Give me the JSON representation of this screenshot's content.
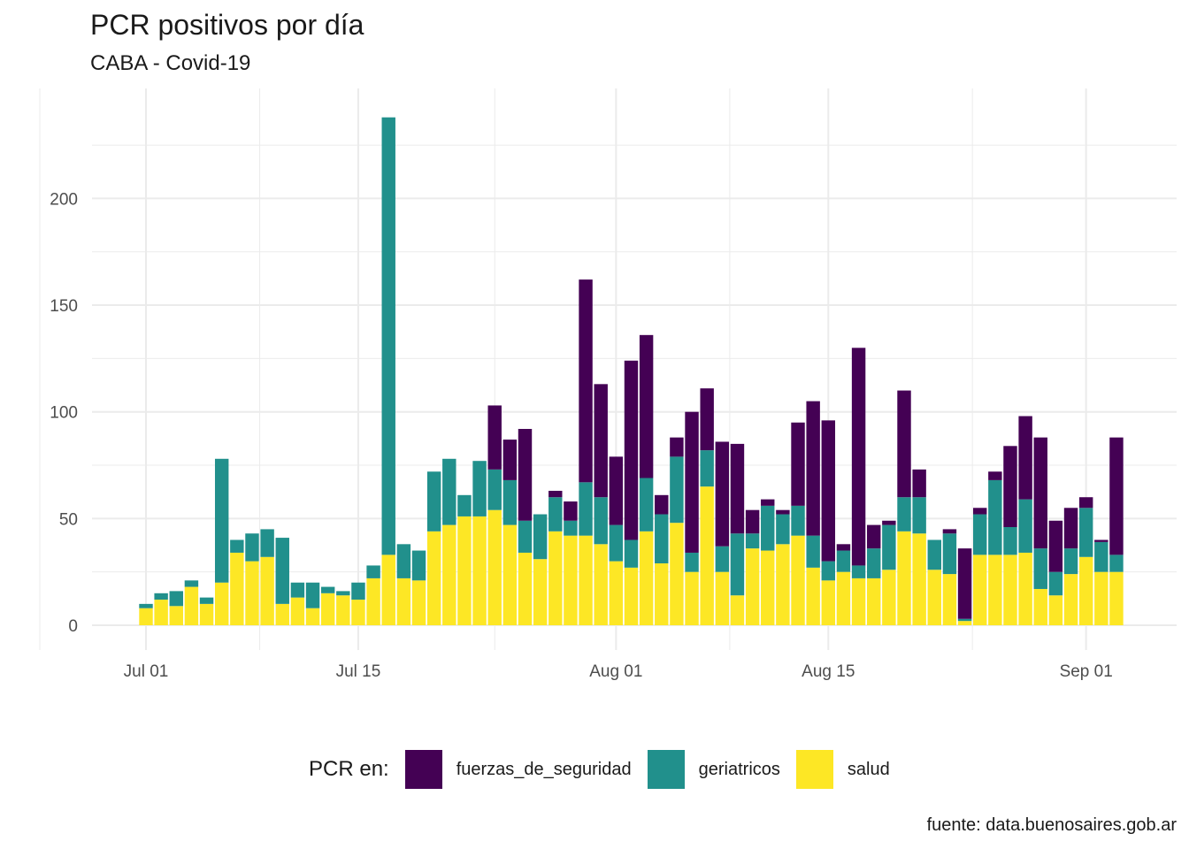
{
  "title": "PCR positivos por día",
  "subtitle": "CABA - Covid-19",
  "caption": "fuente: data.buenosaires.gob.ar",
  "legend": {
    "title": "PCR en:",
    "items": [
      {
        "label": "fuerzas_de_seguridad",
        "color": "#440154"
      },
      {
        "label": "geriatricos",
        "color": "#21908C"
      },
      {
        "label": "salud",
        "color": "#FDE725"
      }
    ]
  },
  "chart_data": {
    "type": "bar",
    "stacked": true,
    "x_type": "date",
    "categories": [
      "2020-07-01",
      "2020-07-02",
      "2020-07-03",
      "2020-07-04",
      "2020-07-05",
      "2020-07-06",
      "2020-07-07",
      "2020-07-08",
      "2020-07-09",
      "2020-07-10",
      "2020-07-11",
      "2020-07-12",
      "2020-07-13",
      "2020-07-14",
      "2020-07-15",
      "2020-07-16",
      "2020-07-17",
      "2020-07-18",
      "2020-07-19",
      "2020-07-20",
      "2020-07-21",
      "2020-07-22",
      "2020-07-23",
      "2020-07-24",
      "2020-07-25",
      "2020-07-26",
      "2020-07-27",
      "2020-07-28",
      "2020-07-29",
      "2020-07-30",
      "2020-07-31",
      "2020-08-01",
      "2020-08-02",
      "2020-08-03",
      "2020-08-04",
      "2020-08-05",
      "2020-08-06",
      "2020-08-07",
      "2020-08-08",
      "2020-08-09",
      "2020-08-10",
      "2020-08-11",
      "2020-08-12",
      "2020-08-13",
      "2020-08-14",
      "2020-08-15",
      "2020-08-16",
      "2020-08-17",
      "2020-08-18",
      "2020-08-19",
      "2020-08-20",
      "2020-08-21",
      "2020-08-22",
      "2020-08-23",
      "2020-08-24",
      "2020-08-25",
      "2020-08-26",
      "2020-08-27",
      "2020-08-28",
      "2020-08-29",
      "2020-08-30",
      "2020-08-31",
      "2020-09-01",
      "2020-09-02",
      "2020-09-03"
    ],
    "series": [
      {
        "name": "salud",
        "color": "#FDE725",
        "values": [
          8,
          12,
          9,
          18,
          10,
          20,
          34,
          30,
          32,
          10,
          13,
          8,
          15,
          14,
          12,
          22,
          33,
          22,
          21,
          44,
          47,
          51,
          51,
          54,
          47,
          34,
          31,
          44,
          42,
          42,
          38,
          30,
          27,
          44,
          29,
          48,
          25,
          65,
          25,
          14,
          36,
          35,
          38,
          42,
          27,
          21,
          25,
          22,
          22,
          26,
          44,
          43,
          26,
          24,
          2,
          33,
          33,
          33,
          34,
          17,
          14,
          24,
          32,
          25,
          25
        ]
      },
      {
        "name": "geriatricos",
        "color": "#21908C",
        "values": [
          2,
          3,
          7,
          3,
          3,
          58,
          6,
          13,
          13,
          31,
          7,
          12,
          3,
          2,
          8,
          6,
          205,
          16,
          14,
          28,
          31,
          10,
          26,
          19,
          21,
          15,
          21,
          16,
          7,
          25,
          22,
          17,
          13,
          25,
          23,
          31,
          9,
          17,
          12,
          29,
          7,
          21,
          14,
          14,
          15,
          9,
          10,
          6,
          14,
          21,
          16,
          17,
          14,
          19,
          1,
          19,
          35,
          13,
          25,
          19,
          11,
          12,
          23,
          14,
          8
        ]
      },
      {
        "name": "fuerzas_de_seguridad",
        "color": "#440154",
        "values": [
          0,
          0,
          0,
          0,
          0,
          0,
          0,
          0,
          0,
          0,
          0,
          0,
          0,
          0,
          0,
          0,
          0,
          0,
          0,
          0,
          0,
          0,
          0,
          30,
          19,
          43,
          0,
          3,
          9,
          95,
          53,
          32,
          84,
          67,
          9,
          9,
          66,
          29,
          49,
          42,
          11,
          3,
          2,
          39,
          63,
          66,
          3,
          102,
          11,
          2,
          50,
          13,
          0,
          2,
          33,
          3,
          4,
          38,
          39,
          52,
          24,
          19,
          5,
          1,
          55
        ]
      }
    ],
    "x_ticks": [
      "Jul 01",
      "Jul 15",
      "Aug 01",
      "Aug 15",
      "Sep 01"
    ],
    "y_ticks": [
      0,
      50,
      100,
      150,
      200
    ],
    "ylim": [
      0,
      240
    ],
    "grid": true,
    "legend_position": "bottom"
  }
}
